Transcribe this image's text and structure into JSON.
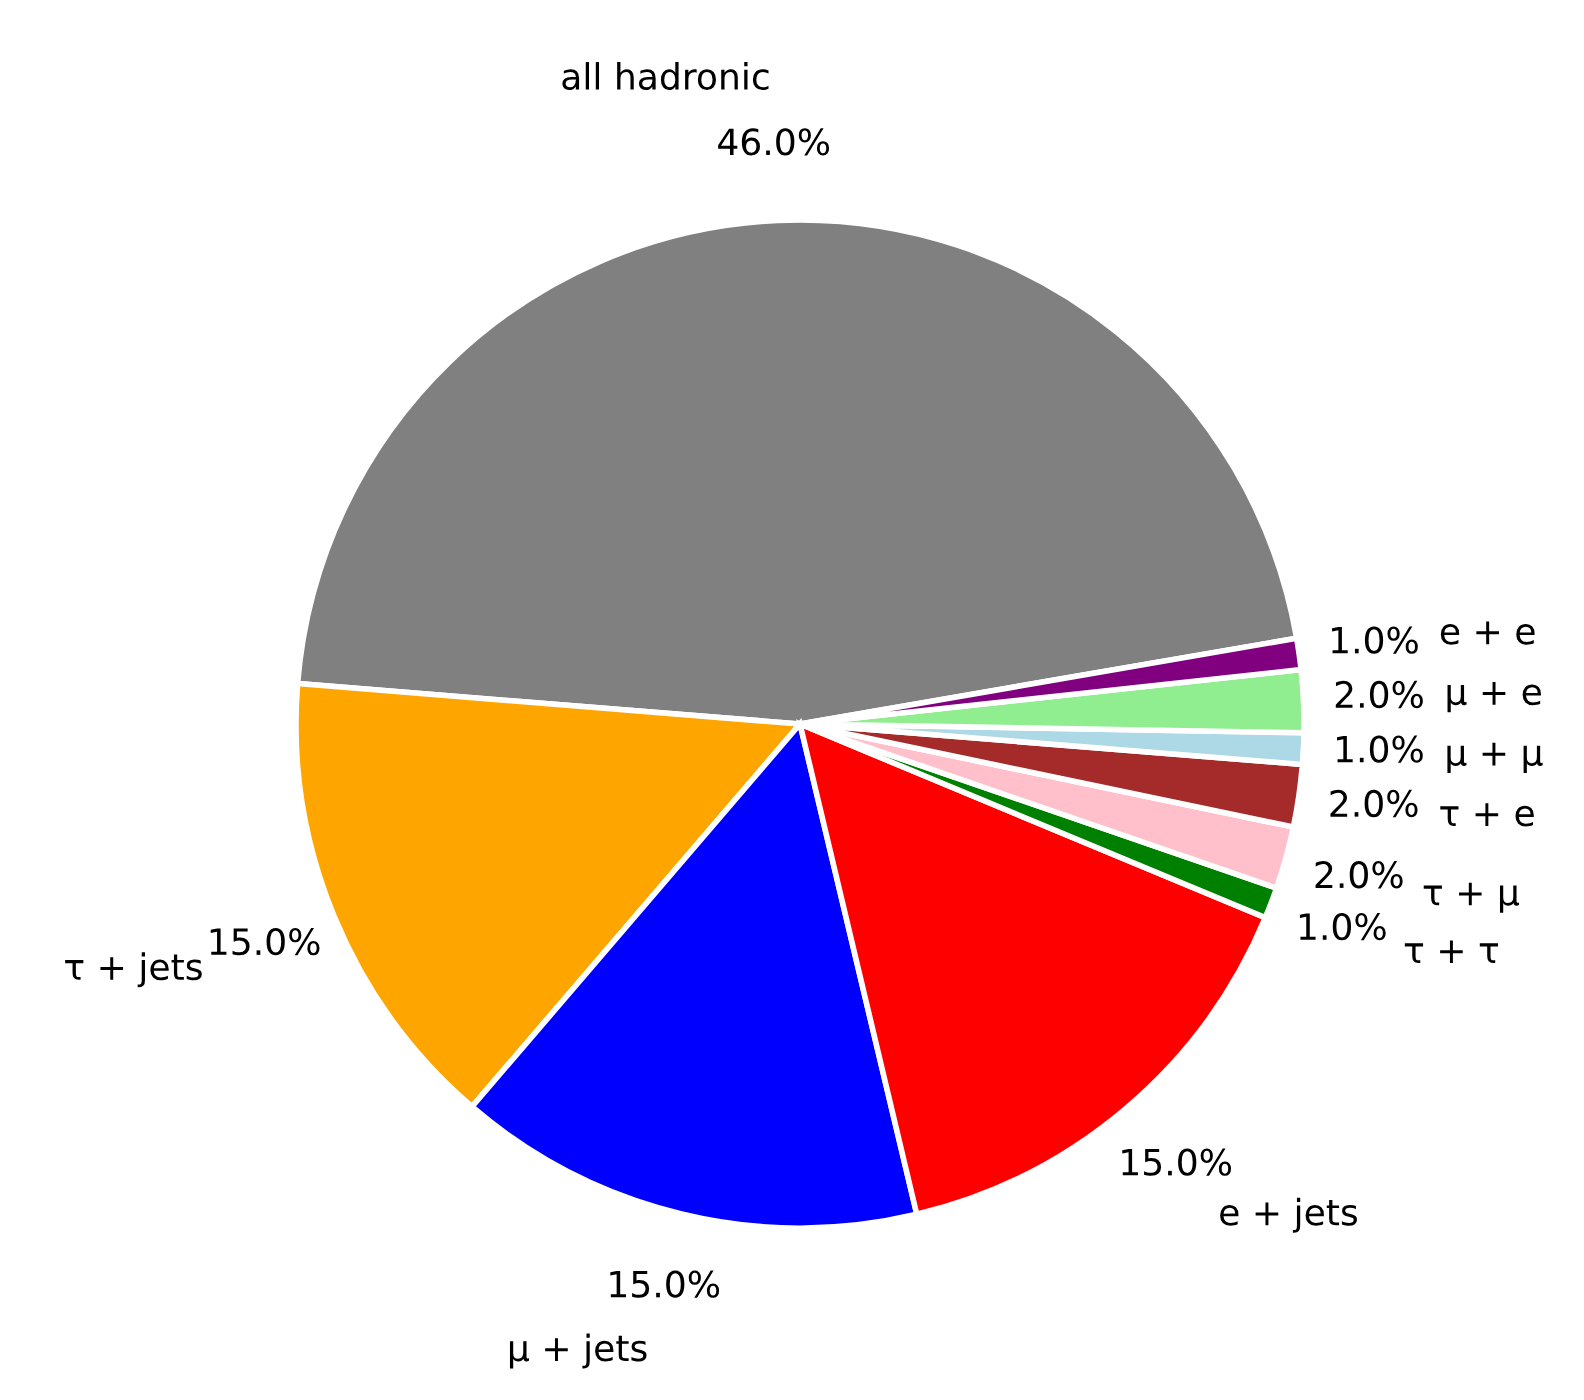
{
  "chart_data": {
    "type": "pie",
    "categories": [
      "all hadronic",
      "τ + jets",
      "μ + jets",
      "e + jets",
      "τ + τ",
      "τ + μ",
      "τ + e",
      "μ + μ",
      "μ + e",
      "e + e"
    ],
    "values": [
      46,
      15,
      15,
      15,
      1,
      2,
      2,
      1,
      2,
      1
    ],
    "value_labels": [
      "46.0%",
      "15.0%",
      "15.0%",
      "15.0%",
      "1.0%",
      "2.0%",
      "2.0%",
      "1.0%",
      "2.0%",
      "1.0%"
    ],
    "colors": [
      "#808080",
      "#ffa500",
      "#0000ff",
      "#ff0000",
      "#008000",
      "#ffc0cb",
      "#a52a2a",
      "#add8e6",
      "#90ee90",
      "#800080"
    ],
    "legend": false
  }
}
